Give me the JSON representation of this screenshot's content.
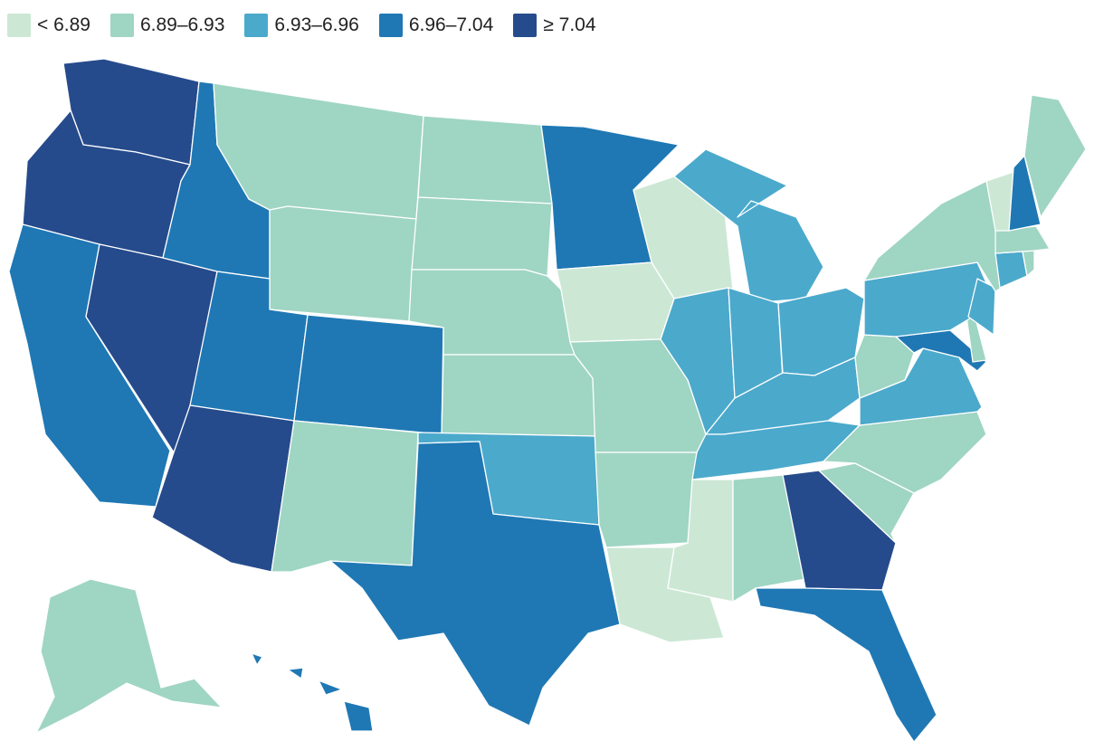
{
  "legend": {
    "items": [
      {
        "label": "< 6.89",
        "color": "#cce8d5"
      },
      {
        "label": "6.89–6.93",
        "color": "#9fd5c3"
      },
      {
        "label": "6.93–6.96",
        "color": "#4ba9cc"
      },
      {
        "label": "6.96–7.04",
        "color": "#1f78b4"
      },
      {
        "label": "≥ 7.04",
        "color": "#264b8c"
      }
    ]
  },
  "states": {
    "WA": 4,
    "OR": 4,
    "CA": 3,
    "NV": 4,
    "ID": 3,
    "MT": 1,
    "WY": 1,
    "UT": 3,
    "AZ": 4,
    "CO": 3,
    "NM": 1,
    "ND": 1,
    "SD": 1,
    "NE": 1,
    "KS": 1,
    "OK": 2,
    "TX": 3,
    "MN": 3,
    "IA": 0,
    "MO": 1,
    "AR": 1,
    "LA": 0,
    "WI": 0,
    "IL": 2,
    "MI": 2,
    "IN": 2,
    "OH": 2,
    "KY": 2,
    "TN": 2,
    "MS": 0,
    "AL": 1,
    "GA": 4,
    "FL": 3,
    "SC": 1,
    "NC": 1,
    "VA": 2,
    "WV": 1,
    "MD": 3,
    "DE": 1,
    "NJ": 2,
    "PA": 2,
    "NY": 1,
    "CT": 2,
    "RI": 1,
    "MA": 1,
    "VT": 0,
    "NH": 3,
    "ME": 1,
    "AK": 1,
    "HI": 3
  }
}
